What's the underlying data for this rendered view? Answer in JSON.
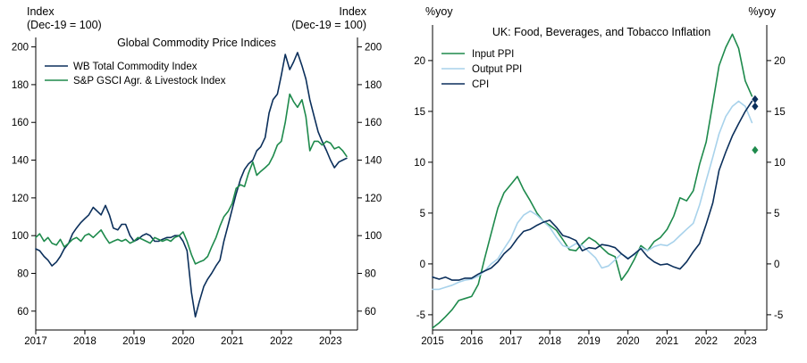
{
  "chart_data": [
    {
      "type": "line",
      "title": "Global Commodity Price Indices",
      "left_unit_label": [
        "Index",
        "(Dec-19 = 100)"
      ],
      "right_unit_label": [
        "Index",
        "(Dec-19 = 100)"
      ],
      "xlim": [
        2017,
        2023.55
      ],
      "ylim": [
        50,
        205
      ],
      "x_ticks": [
        2017,
        2018,
        2019,
        2020,
        2021,
        2022,
        2023
      ],
      "x_tick_labels": [
        "2017",
        "2018",
        "2019",
        "2020",
        "2021",
        "2022",
        "2023"
      ],
      "y_ticks": [
        60,
        80,
        100,
        120,
        140,
        160,
        180,
        200
      ],
      "y_tick_labels": [
        "60",
        "80",
        "100",
        "120",
        "140",
        "160",
        "180",
        "200"
      ],
      "legend_position": "top-left",
      "series": [
        {
          "name": "WB Total Commodity Index",
          "color": "#0b2f5b",
          "x": [
            2017.0,
            2017.08,
            2017.17,
            2017.25,
            2017.33,
            2017.42,
            2017.5,
            2017.58,
            2017.67,
            2017.75,
            2017.83,
            2017.92,
            2018.0,
            2018.08,
            2018.17,
            2018.25,
            2018.33,
            2018.42,
            2018.5,
            2018.58,
            2018.67,
            2018.75,
            2018.83,
            2018.92,
            2019.0,
            2019.08,
            2019.17,
            2019.25,
            2019.33,
            2019.42,
            2019.5,
            2019.58,
            2019.67,
            2019.75,
            2019.83,
            2019.92,
            2020.0,
            2020.08,
            2020.17,
            2020.25,
            2020.33,
            2020.42,
            2020.5,
            2020.58,
            2020.67,
            2020.75,
            2020.83,
            2020.92,
            2021.0,
            2021.08,
            2021.17,
            2021.25,
            2021.33,
            2021.42,
            2021.5,
            2021.58,
            2021.67,
            2021.75,
            2021.83,
            2021.92,
            2022.0,
            2022.08,
            2022.17,
            2022.25,
            2022.33,
            2022.42,
            2022.5,
            2022.58,
            2022.67,
            2022.75,
            2022.83,
            2022.92,
            2023.0,
            2023.08,
            2023.17,
            2023.25,
            2023.33
          ],
          "values": [
            93,
            92,
            89,
            87,
            84,
            86,
            89,
            93,
            96,
            101,
            104,
            107,
            109,
            111,
            115,
            113,
            111,
            116,
            111,
            104,
            103,
            106,
            106,
            100,
            97,
            98,
            100,
            101,
            100,
            97,
            97,
            98,
            99,
            99,
            100,
            100,
            97,
            92,
            70,
            57,
            65,
            73,
            77,
            80,
            84,
            87,
            97,
            106,
            114,
            122,
            130,
            135,
            138,
            140,
            145,
            147,
            152,
            165,
            172,
            175,
            185,
            196,
            188,
            192,
            197,
            190,
            183,
            172,
            163,
            155,
            150,
            145,
            140,
            136,
            139,
            140,
            141
          ]
        },
        {
          "name": "S&P GSCI Agr. & Livestock Index",
          "color": "#1e8a4c",
          "x": [
            2017.0,
            2017.08,
            2017.17,
            2017.25,
            2017.33,
            2017.42,
            2017.5,
            2017.58,
            2017.67,
            2017.75,
            2017.83,
            2017.92,
            2018.0,
            2018.08,
            2018.17,
            2018.25,
            2018.33,
            2018.42,
            2018.5,
            2018.58,
            2018.67,
            2018.75,
            2018.83,
            2018.92,
            2019.0,
            2019.08,
            2019.17,
            2019.25,
            2019.33,
            2019.42,
            2019.5,
            2019.58,
            2019.67,
            2019.75,
            2019.83,
            2019.92,
            2020.0,
            2020.08,
            2020.17,
            2020.25,
            2020.33,
            2020.42,
            2020.5,
            2020.58,
            2020.67,
            2020.75,
            2020.83,
            2020.92,
            2021.0,
            2021.08,
            2021.17,
            2021.25,
            2021.33,
            2021.42,
            2021.5,
            2021.58,
            2021.67,
            2021.75,
            2021.83,
            2021.92,
            2022.0,
            2022.08,
            2022.17,
            2022.25,
            2022.33,
            2022.42,
            2022.5,
            2022.58,
            2022.67,
            2022.75,
            2022.83,
            2022.92,
            2023.0,
            2023.08,
            2023.17,
            2023.25,
            2023.33
          ],
          "values": [
            99,
            101,
            97,
            99,
            96,
            95,
            98,
            94,
            96,
            98,
            99,
            97,
            100,
            101,
            99,
            101,
            103,
            99,
            96,
            97,
            98,
            97,
            98,
            96,
            97,
            99,
            98,
            97,
            96,
            99,
            98,
            97,
            98,
            97,
            99,
            100,
            102,
            97,
            90,
            85,
            86,
            87,
            89,
            94,
            99,
            105,
            110,
            113,
            117,
            125,
            127,
            126,
            133,
            139,
            132,
            134,
            136,
            138,
            142,
            148,
            150,
            160,
            175,
            171,
            168,
            172,
            163,
            145,
            150,
            150,
            148,
            150,
            149,
            146,
            147,
            145,
            142
          ]
        }
      ]
    },
    {
      "type": "line",
      "title": "UK: Food, Beverages, and Tobacco Inflation",
      "left_unit_label": [
        "%yoy"
      ],
      "right_unit_label": [
        "%yoy"
      ],
      "xlim": [
        2015,
        2023.55
      ],
      "ylim": [
        -6.5,
        23.5
      ],
      "x_ticks": [
        2015,
        2016,
        2017,
        2018,
        2019,
        2020,
        2021,
        2022,
        2023
      ],
      "x_tick_labels": [
        "2015",
        "2016",
        "2017",
        "2018",
        "2019",
        "2020",
        "2021",
        "2022",
        "2023"
      ],
      "y_ticks": [
        -5,
        0,
        5,
        10,
        15,
        20
      ],
      "y_tick_labels": [
        "-5",
        "0",
        "5",
        "10",
        "15",
        "20"
      ],
      "legend_position": "top-left",
      "series": [
        {
          "name": "Input PPI",
          "color": "#1e8a4c",
          "x": [
            2015.0,
            2015.17,
            2015.33,
            2015.5,
            2015.67,
            2015.83,
            2016.0,
            2016.17,
            2016.33,
            2016.5,
            2016.67,
            2016.83,
            2017.0,
            2017.17,
            2017.33,
            2017.5,
            2017.67,
            2017.83,
            2018.0,
            2018.17,
            2018.33,
            2018.5,
            2018.67,
            2018.83,
            2019.0,
            2019.17,
            2019.33,
            2019.5,
            2019.67,
            2019.83,
            2020.0,
            2020.17,
            2020.33,
            2020.5,
            2020.67,
            2020.83,
            2021.0,
            2021.17,
            2021.33,
            2021.5,
            2021.67,
            2021.83,
            2022.0,
            2022.17,
            2022.33,
            2022.5,
            2022.67,
            2022.83,
            2023.0,
            2023.17
          ],
          "values": [
            -6.3,
            -5.8,
            -5.2,
            -4.5,
            -3.6,
            -3.4,
            -3.2,
            -2.0,
            0.5,
            3.0,
            5.5,
            7.0,
            7.8,
            8.6,
            7.3,
            6.2,
            5.0,
            4.2,
            3.8,
            3.3,
            2.4,
            1.4,
            1.3,
            2.0,
            2.6,
            2.2,
            1.6,
            1.0,
            0.7,
            -1.6,
            -0.7,
            0.5,
            1.8,
            1.3,
            2.2,
            2.6,
            3.4,
            4.7,
            6.5,
            6.2,
            7.2,
            9.8,
            12.0,
            15.8,
            19.5,
            21.3,
            22.6,
            21.2,
            18.0,
            16.5
          ]
        },
        {
          "name": "Output PPI",
          "color": "#a8d2eb",
          "x": [
            2015.0,
            2015.17,
            2015.33,
            2015.5,
            2015.67,
            2015.83,
            2016.0,
            2016.17,
            2016.33,
            2016.5,
            2016.67,
            2016.83,
            2017.0,
            2017.17,
            2017.33,
            2017.5,
            2017.67,
            2017.83,
            2018.0,
            2018.17,
            2018.33,
            2018.5,
            2018.67,
            2018.83,
            2019.0,
            2019.17,
            2019.33,
            2019.5,
            2019.67,
            2019.83,
            2020.0,
            2020.17,
            2020.33,
            2020.5,
            2020.67,
            2020.83,
            2021.0,
            2021.17,
            2021.33,
            2021.5,
            2021.67,
            2021.83,
            2022.0,
            2022.17,
            2022.33,
            2022.5,
            2022.67,
            2022.83,
            2023.0,
            2023.17
          ],
          "values": [
            -2.5,
            -2.5,
            -2.3,
            -2.1,
            -1.8,
            -1.6,
            -1.5,
            -1.2,
            -0.7,
            0.0,
            0.5,
            1.5,
            2.5,
            4.0,
            4.8,
            5.2,
            4.8,
            4.2,
            3.6,
            2.6,
            1.8,
            1.6,
            2.0,
            1.8,
            1.2,
            0.6,
            -0.4,
            -0.2,
            0.4,
            1.0,
            0.6,
            0.9,
            1.6,
            1.3,
            1.7,
            1.9,
            1.8,
            2.2,
            2.8,
            3.4,
            4.0,
            5.8,
            8.2,
            10.5,
            12.8,
            14.5,
            15.5,
            16.0,
            15.5,
            13.9
          ]
        },
        {
          "name": "CPI",
          "color": "#0b2f5b",
          "x": [
            2015.0,
            2015.17,
            2015.33,
            2015.5,
            2015.67,
            2015.83,
            2016.0,
            2016.17,
            2016.33,
            2016.5,
            2016.67,
            2016.83,
            2017.0,
            2017.17,
            2017.33,
            2017.5,
            2017.67,
            2017.83,
            2018.0,
            2018.17,
            2018.33,
            2018.5,
            2018.67,
            2018.83,
            2019.0,
            2019.17,
            2019.33,
            2019.5,
            2019.67,
            2019.83,
            2020.0,
            2020.17,
            2020.33,
            2020.5,
            2020.67,
            2020.83,
            2021.0,
            2021.17,
            2021.33,
            2021.5,
            2021.67,
            2021.83,
            2022.0,
            2022.17,
            2022.33,
            2022.5,
            2022.67,
            2022.83,
            2023.0,
            2023.17
          ],
          "values": [
            -1.3,
            -1.5,
            -1.3,
            -1.6,
            -1.6,
            -1.4,
            -1.4,
            -1.0,
            -0.7,
            -0.4,
            0.2,
            1.0,
            1.6,
            2.5,
            3.2,
            3.4,
            3.8,
            4.1,
            4.3,
            3.6,
            2.8,
            2.6,
            2.3,
            1.3,
            1.6,
            1.5,
            1.9,
            1.8,
            1.6,
            1.0,
            0.5,
            1.0,
            1.5,
            0.7,
            0.2,
            -0.1,
            0.0,
            -0.3,
            -0.5,
            0.2,
            1.2,
            2.0,
            3.9,
            6.0,
            9.2,
            11.0,
            12.6,
            13.8,
            15.0,
            16.0
          ]
        }
      ],
      "markers": [
        {
          "name": "Output PPI latest",
          "x": 2023.25,
          "value": 15.5,
          "color": "#0b2f5b"
        },
        {
          "name": "CPI latest",
          "x": 2023.25,
          "value": 16.2,
          "color": "#0b2f5b"
        },
        {
          "name": "Input PPI latest",
          "x": 2023.25,
          "value": 11.2,
          "color": "#1e8a4c"
        }
      ]
    }
  ]
}
